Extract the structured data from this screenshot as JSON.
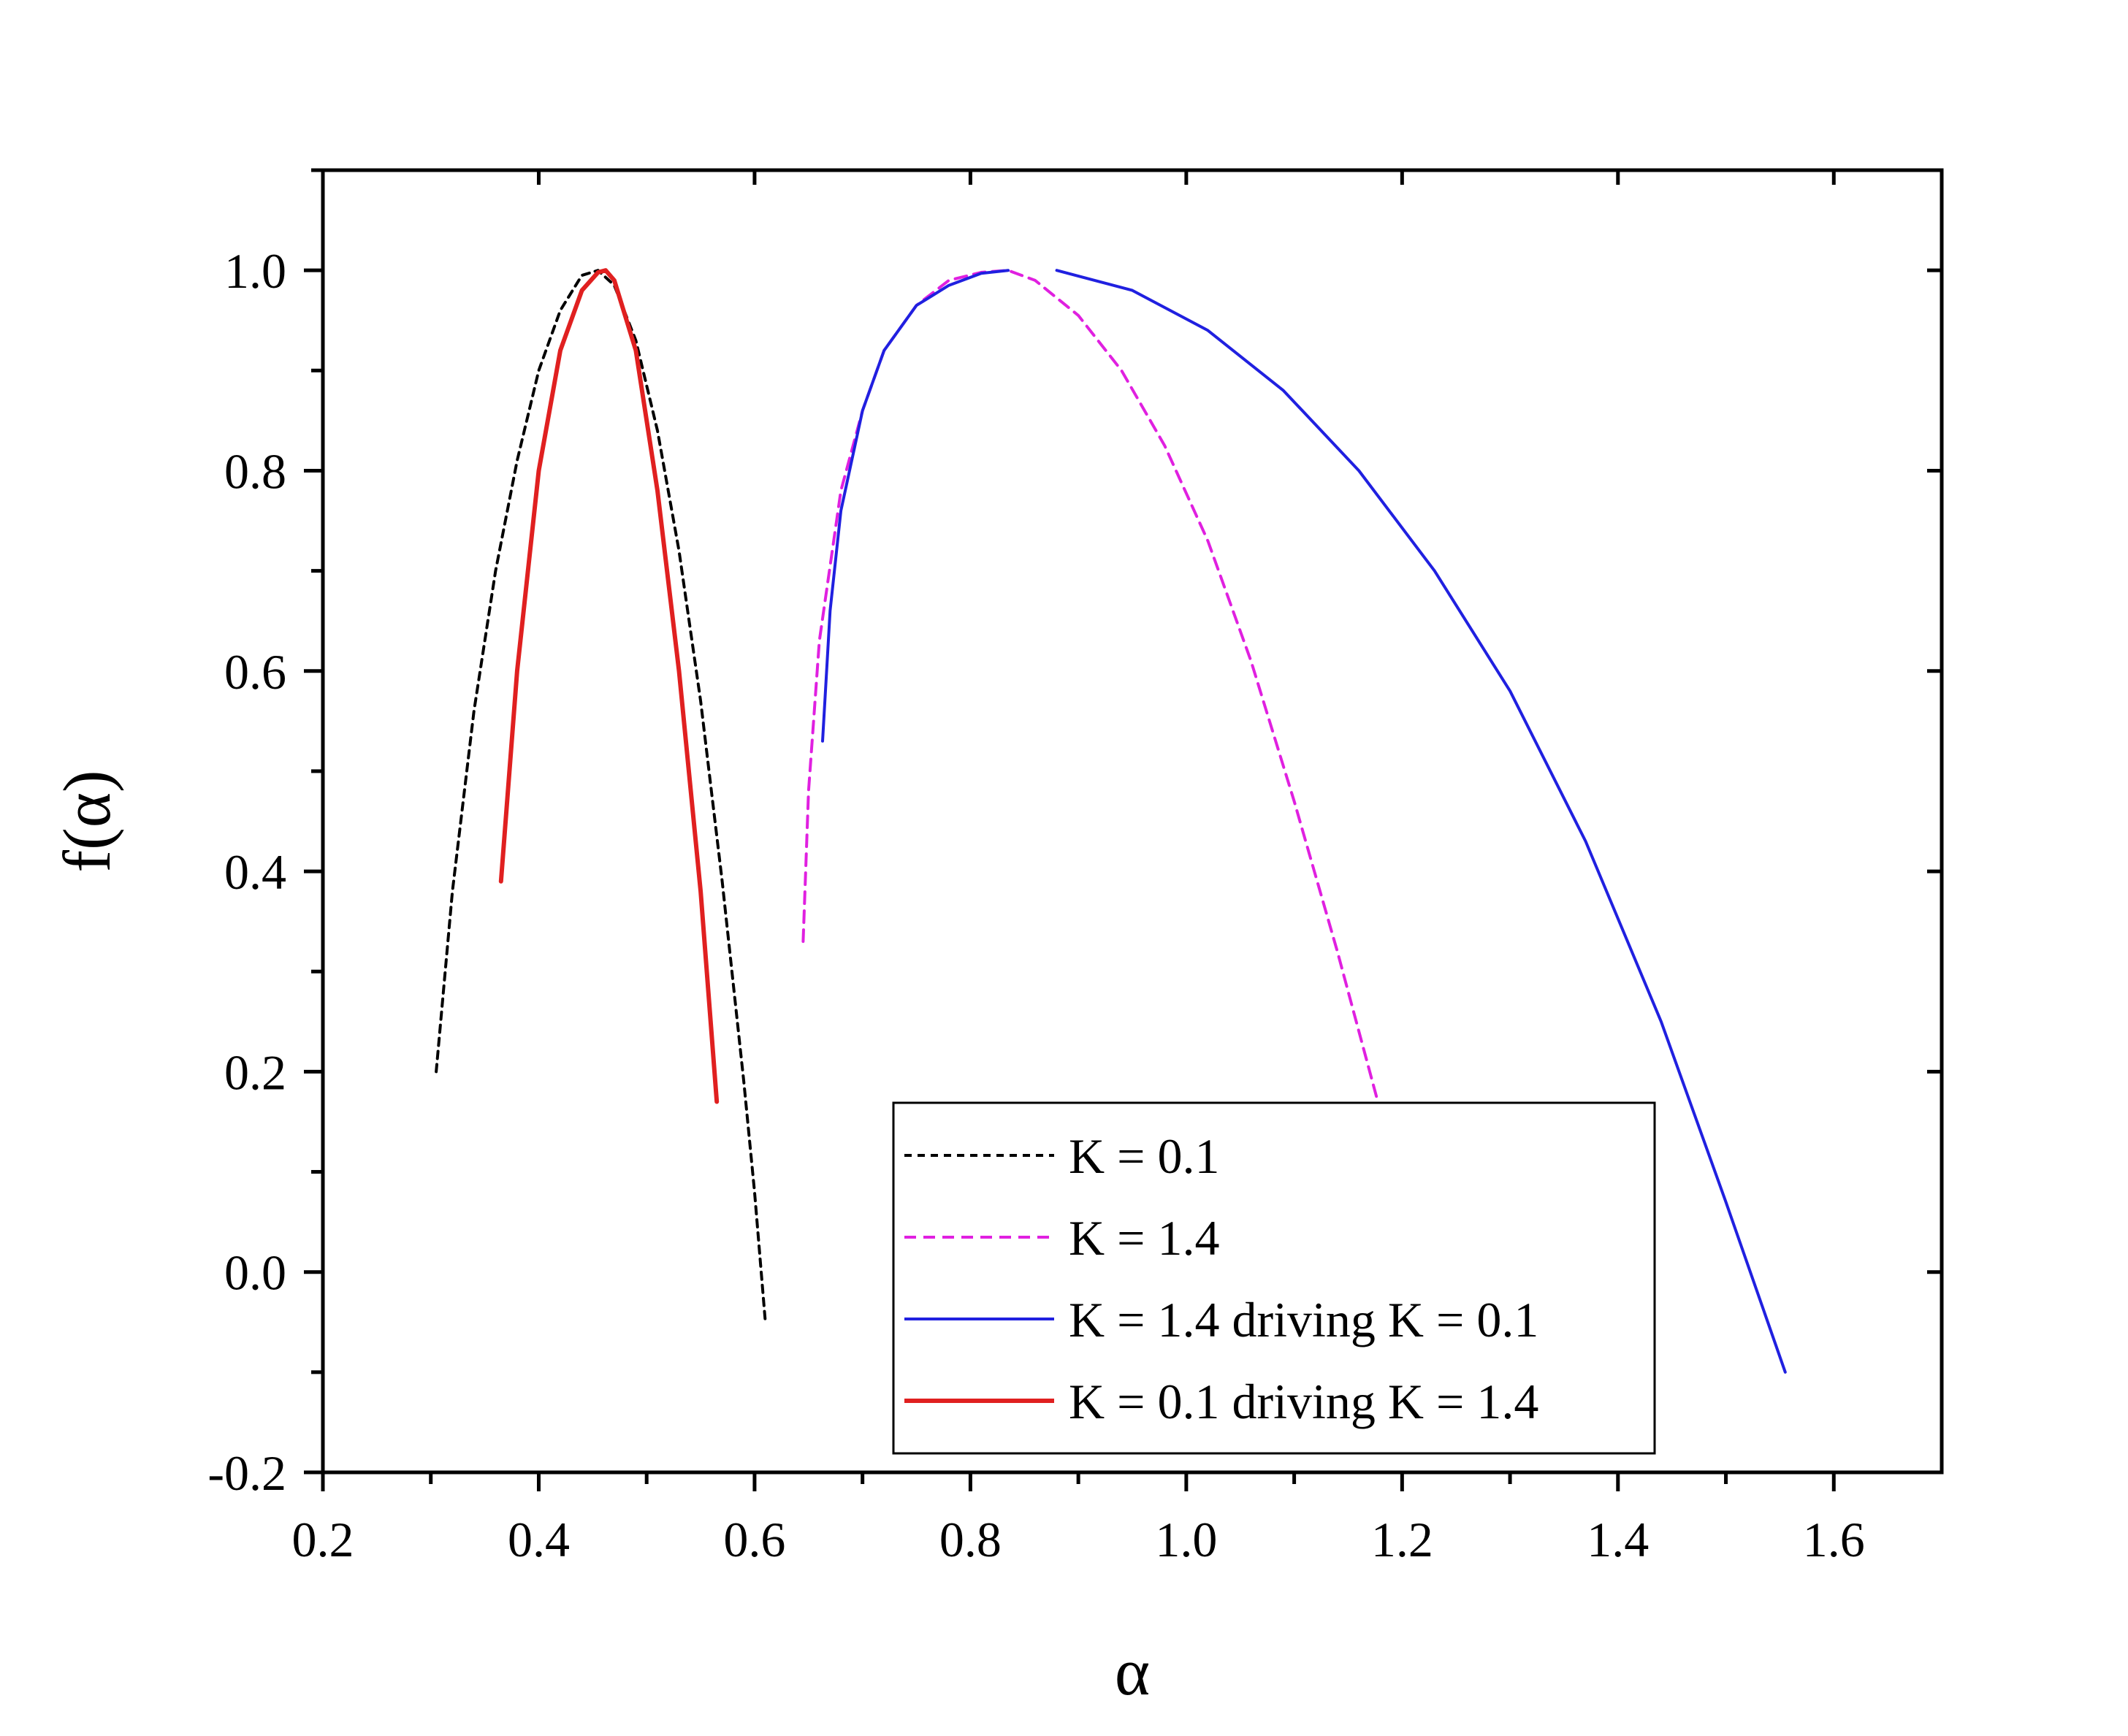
{
  "chart_data": {
    "type": "line",
    "title": "",
    "xlabel": "α",
    "ylabel": "f(α)",
    "xlim": [
      0.2,
      1.7
    ],
    "ylim": [
      -0.2,
      1.1
    ],
    "x_ticks": [
      "0.2",
      "0.4",
      "0.6",
      "0.8",
      "1.0",
      "1.2",
      "1.4",
      "1.6"
    ],
    "y_ticks": [
      "-0.2",
      "0.0",
      "0.2",
      "0.4",
      "0.6",
      "0.8",
      "1.0"
    ],
    "grid": false,
    "legend_position": "bottom-right",
    "series": [
      {
        "name": "K = 0.1",
        "color": "#000000",
        "style": "dashed",
        "x": [
          0.305,
          0.32,
          0.34,
          0.36,
          0.38,
          0.4,
          0.42,
          0.44,
          0.455,
          0.47,
          0.49,
          0.51,
          0.53,
          0.55,
          0.57,
          0.59,
          0.6,
          0.61
        ],
        "y": [
          0.2,
          0.38,
          0.56,
          0.7,
          0.81,
          0.9,
          0.96,
          0.995,
          1.0,
          0.985,
          0.93,
          0.84,
          0.72,
          0.57,
          0.39,
          0.19,
          0.08,
          -0.05
        ]
      },
      {
        "name": "K = 1.4",
        "color": "#e020e0",
        "style": "dashed",
        "x": [
          0.645,
          0.65,
          0.66,
          0.68,
          0.7,
          0.72,
          0.75,
          0.78,
          0.81,
          0.835,
          0.86,
          0.9,
          0.94,
          0.98,
          1.02,
          1.06,
          1.1,
          1.14,
          1.18
        ],
        "y": [
          0.33,
          0.48,
          0.63,
          0.78,
          0.86,
          0.92,
          0.965,
          0.99,
          0.998,
          1.0,
          0.99,
          0.955,
          0.9,
          0.825,
          0.73,
          0.61,
          0.47,
          0.32,
          0.16
        ]
      },
      {
        "name": "K = 1.4 driving K = 0.1",
        "color": "#2020e0",
        "style": "solid",
        "segments": [
          {
            "x": [
              0.663,
              0.67,
              0.68,
              0.7,
              0.72,
              0.75,
              0.78,
              0.81,
              0.835
            ],
            "y": [
              0.53,
              0.66,
              0.76,
              0.86,
              0.92,
              0.965,
              0.985,
              0.997,
              1.0
            ]
          },
          {
            "x": [
              0.88,
              0.95,
              1.02,
              1.09,
              1.16,
              1.23,
              1.3,
              1.37,
              1.44,
              1.5,
              1.555
            ],
            "y": [
              1.0,
              0.98,
              0.94,
              0.88,
              0.8,
              0.7,
              0.58,
              0.43,
              0.25,
              0.07,
              -0.1
            ]
          }
        ]
      },
      {
        "name": "K = 0.1 driving K = 1.4",
        "color": "#e02020",
        "style": "solid",
        "x": [
          0.365,
          0.38,
          0.4,
          0.42,
          0.44,
          0.455,
          0.462,
          0.47,
          0.49,
          0.51,
          0.53,
          0.55,
          0.565
        ],
        "y": [
          0.39,
          0.6,
          0.8,
          0.92,
          0.98,
          0.998,
          1.0,
          0.99,
          0.92,
          0.78,
          0.6,
          0.38,
          0.17
        ]
      }
    ]
  }
}
